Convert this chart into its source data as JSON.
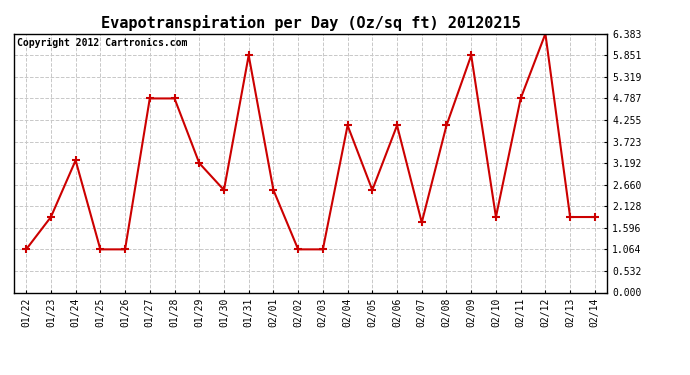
{
  "title": "Evapotranspiration per Day (Oz/sq ft) 20120215",
  "copyright": "Copyright 2012 Cartronics.com",
  "x_labels": [
    "01/22",
    "01/23",
    "01/24",
    "01/25",
    "01/26",
    "01/27",
    "01/28",
    "01/29",
    "01/30",
    "01/31",
    "02/01",
    "02/02",
    "02/03",
    "02/04",
    "02/05",
    "02/06",
    "02/07",
    "02/08",
    "02/09",
    "02/10",
    "02/11",
    "02/12",
    "02/13",
    "02/14"
  ],
  "y_values": [
    1.064,
    1.862,
    3.26,
    1.064,
    1.064,
    4.787,
    4.787,
    3.192,
    2.528,
    5.851,
    2.528,
    1.064,
    1.064,
    4.122,
    2.528,
    4.122,
    1.728,
    4.122,
    5.851,
    1.862,
    4.787,
    6.383,
    1.862,
    1.862
  ],
  "line_color": "#cc0000",
  "marker": "+",
  "marker_size": 6,
  "marker_linewidth": 1.5,
  "line_width": 1.5,
  "y_min": 0.0,
  "y_max": 6.383,
  "y_ticks": [
    0.0,
    0.532,
    1.064,
    1.596,
    2.128,
    2.66,
    3.192,
    3.723,
    4.255,
    4.787,
    5.319,
    5.851,
    6.383
  ],
  "grid_color": "#c8c8c8",
  "grid_style": "--",
  "bg_color": "#ffffff",
  "plot_bg_color": "#ffffff",
  "title_fontsize": 11,
  "copyright_fontsize": 7,
  "tick_fontsize": 7,
  "fig_width": 6.9,
  "fig_height": 3.75,
  "dpi": 100
}
